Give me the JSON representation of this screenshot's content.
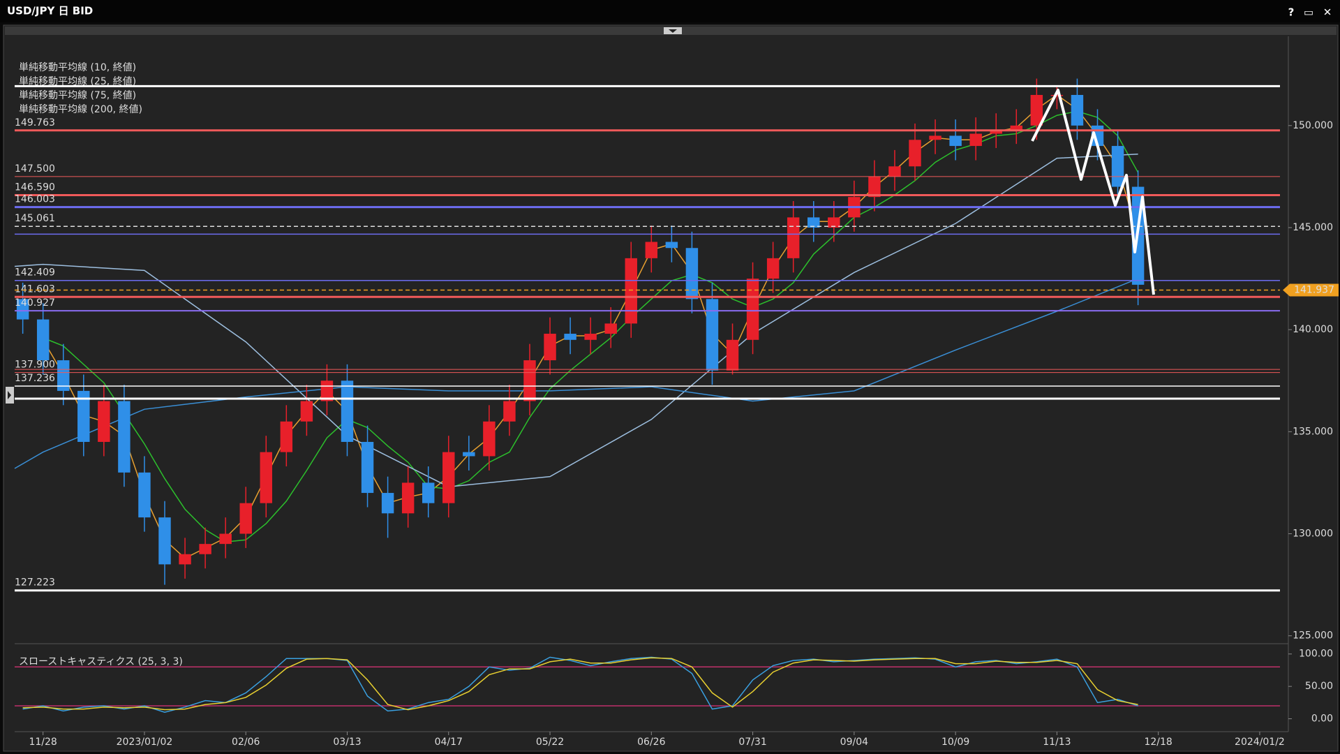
{
  "window": {
    "buttons": [
      "?",
      "▭",
      "✕"
    ]
  },
  "chart_data": [
    {
      "type": "candlestick",
      "title": "USD/JPY 日 BID",
      "xlim": [
        -7,
        305
      ],
      "xticks": [
        {
          "value": 0,
          "label": "11/28"
        },
        {
          "value": 25,
          "label": "2023/01/02"
        },
        {
          "value": 50,
          "label": "02/06"
        },
        {
          "value": 75,
          "label": "03/13"
        },
        {
          "value": 100,
          "label": "04/17"
        },
        {
          "value": 125,
          "label": "05/22"
        },
        {
          "value": 150,
          "label": "06/26"
        },
        {
          "value": 175,
          "label": "07/31"
        },
        {
          "value": 200,
          "label": "09/04"
        },
        {
          "value": 225,
          "label": "10/09"
        },
        {
          "value": 250,
          "label": "11/13"
        },
        {
          "value": 275,
          "label": "12/18"
        },
        {
          "value": 300,
          "label": "2024/01/2"
        }
      ],
      "ylim": [
        124.75,
        154.27
      ],
      "yticks": [
        {
          "value": 125,
          "label": "125.000"
        },
        {
          "value": 130,
          "label": "130.000"
        },
        {
          "value": 135,
          "label": "135.000"
        },
        {
          "value": 140,
          "label": "140.000"
        },
        {
          "value": 145,
          "label": "145.000"
        },
        {
          "value": 150,
          "label": "150.000"
        }
      ],
      "grid": false,
      "up_color": "#e8202a",
      "down_color": "#2f8fe8",
      "candles": {
        "x": [
          -5,
          0,
          5,
          10,
          15,
          20,
          25,
          30,
          35,
          40,
          45,
          50,
          55,
          60,
          65,
          70,
          75,
          80,
          85,
          90,
          95,
          100,
          105,
          110,
          115,
          120,
          125,
          130,
          135,
          140,
          145,
          150,
          155,
          160,
          165,
          170,
          175,
          180,
          185,
          190,
          195,
          200,
          205,
          210,
          215,
          220,
          225,
          230,
          235,
          240,
          245,
          250,
          255,
          260,
          265,
          270
        ],
        "open": [
          141.5,
          140.5,
          138.5,
          137,
          134.5,
          136.5,
          133,
          130.8,
          128.5,
          129,
          129.5,
          130,
          131.5,
          134,
          135.5,
          136.5,
          137.5,
          134.5,
          132,
          131,
          132.5,
          131.5,
          134,
          133.8,
          135.5,
          136.5,
          138.5,
          139.8,
          139.5,
          139.8,
          140.3,
          143.5,
          144.3,
          144,
          141.5,
          138,
          139.5,
          142.5,
          143.5,
          145.5,
          145,
          145.5,
          146.5,
          147.5,
          148,
          149.3,
          149.5,
          149,
          149.6,
          149.8,
          150,
          151.5,
          151.5,
          150,
          149,
          147
        ],
        "high": [
          142.3,
          141.3,
          139.3,
          137.8,
          137.3,
          137.3,
          133.8,
          131.6,
          129.8,
          130.3,
          130.8,
          132.3,
          134.8,
          136.3,
          137.3,
          138.3,
          138.3,
          135.3,
          132.8,
          133.3,
          133.3,
          134.8,
          134.8,
          136.3,
          137.3,
          139.3,
          140.6,
          140.6,
          140.6,
          141.1,
          144.3,
          145.1,
          145.1,
          144.8,
          142.3,
          140.3,
          143.3,
          144.3,
          146.3,
          146.3,
          146.3,
          147.3,
          148.3,
          148.8,
          150.1,
          150.3,
          150.3,
          150.4,
          150.6,
          150.8,
          152.3,
          151.9,
          152.3,
          150.8,
          149.8,
          147.8
        ],
        "low": [
          139.8,
          137.8,
          136.3,
          133.8,
          133.8,
          132.3,
          130.1,
          127.5,
          127.8,
          128.3,
          128.8,
          129.3,
          130.8,
          133.3,
          134.8,
          135.8,
          133.8,
          131.3,
          129.8,
          130.3,
          130.8,
          130.8,
          133.1,
          133.1,
          134.8,
          135.8,
          137.8,
          138.8,
          138.8,
          139.1,
          139.6,
          142.8,
          143.3,
          140.8,
          137.3,
          137.8,
          138.8,
          141.8,
          142.8,
          144.3,
          144.3,
          144.8,
          145.8,
          146.8,
          147.3,
          148.6,
          148.3,
          148.3,
          148.9,
          149.1,
          149.3,
          150.8,
          149.3,
          148.3,
          146.3,
          141.2
        ],
        "close": [
          140.5,
          138.5,
          137,
          134.5,
          136.5,
          133,
          130.8,
          128.5,
          129,
          129.5,
          130,
          131.5,
          134,
          135.5,
          136.5,
          137.5,
          134.5,
          132,
          131,
          132.5,
          131.5,
          134,
          133.8,
          135.5,
          136.5,
          138.5,
          139.8,
          139.5,
          139.8,
          140.3,
          143.5,
          144.3,
          144,
          141.5,
          138,
          139.5,
          142.5,
          143.5,
          145.5,
          145,
          145.5,
          146.5,
          147.5,
          148,
          149.3,
          149.5,
          149,
          149.6,
          149.8,
          150,
          151.5,
          151.5,
          150,
          149,
          147,
          142.2
        ]
      },
      "series": [
        {
          "name": "単純移動平均線 (10, 終値)",
          "color": "#e8a030",
          "x": [
            0,
            5,
            10,
            15,
            20,
            25,
            30,
            35,
            40,
            45,
            50,
            55,
            60,
            65,
            70,
            75,
            80,
            85,
            90,
            95,
            100,
            105,
            110,
            115,
            120,
            125,
            130,
            135,
            140,
            145,
            150,
            155,
            160,
            165,
            170,
            175,
            180,
            185,
            190,
            195,
            200,
            205,
            210,
            215,
            220,
            225,
            230,
            235,
            240,
            245,
            250,
            255,
            260,
            265,
            270
          ],
          "values": [
            139.5,
            137.8,
            135.8,
            135.5,
            134.8,
            131.9,
            129.7,
            128.8,
            129.3,
            129.8,
            130.8,
            132.8,
            134.8,
            136,
            137,
            136,
            133.3,
            131.5,
            131.8,
            132,
            132.8,
            133.9,
            134.7,
            136,
            137.5,
            139.2,
            139.7,
            139.7,
            140,
            141.9,
            143.9,
            144.2,
            142.8,
            139.8,
            138.8,
            141,
            143,
            144.5,
            145.3,
            145.3,
            146,
            147,
            147.8,
            148.7,
            149.4,
            149.3,
            149.3,
            149.7,
            149.9,
            150.8,
            151.5,
            150.8,
            149.5,
            148,
            144.6
          ]
        },
        {
          "name": "単純移動平均線 (25, 終値)",
          "color": "#2cc02c",
          "x": [
            0,
            5,
            10,
            15,
            20,
            25,
            30,
            35,
            40,
            45,
            50,
            55,
            60,
            65,
            70,
            75,
            80,
            85,
            90,
            95,
            100,
            105,
            110,
            115,
            120,
            125,
            130,
            135,
            140,
            145,
            150,
            155,
            160,
            165,
            170,
            175,
            180,
            185,
            190,
            195,
            200,
            205,
            210,
            215,
            220,
            225,
            230,
            235,
            240,
            245,
            250,
            255,
            260,
            265,
            270
          ],
          "values": [
            139.6,
            139.2,
            138.3,
            137.4,
            135.9,
            134.4,
            132.7,
            131.2,
            130.2,
            129.6,
            129.7,
            130.5,
            131.6,
            133.1,
            134.7,
            135.6,
            135.2,
            134.3,
            133.5,
            132.3,
            132.2,
            132.6,
            133.5,
            134,
            135.7,
            137.1,
            138,
            138.8,
            139.6,
            140.6,
            141.5,
            142.4,
            142.7,
            142.3,
            141.5,
            141.1,
            141.5,
            142.3,
            143.7,
            144.6,
            145.5,
            146,
            146.6,
            147.3,
            148.2,
            148.8,
            149.1,
            149.5,
            149.6,
            150,
            150.5,
            150.7,
            150.4,
            149.5,
            147.7
          ]
        },
        {
          "name": "単純移動平均線 (75, 終値)",
          "color": "#9dbfe0",
          "x": [
            -7,
            0,
            25,
            50,
            75,
            100,
            125,
            150,
            175,
            200,
            225,
            250,
            270
          ],
          "values": [
            143.1,
            143.2,
            142.9,
            139.4,
            134.8,
            132.3,
            132.8,
            135.6,
            139.8,
            142.8,
            145.2,
            148.4,
            148.6
          ]
        },
        {
          "name": "単純移動平均線 (200, 終値)",
          "color": "#3a8fd6",
          "x": [
            -7,
            0,
            25,
            50,
            75,
            100,
            125,
            150,
            175,
            200,
            225,
            250,
            270
          ],
          "values": [
            133.2,
            134.0,
            136.1,
            136.7,
            137.2,
            137.0,
            137.0,
            137.2,
            136.5,
            137.0,
            139.0,
            140.9,
            142.5
          ]
        }
      ],
      "levels": [
        {
          "price": 149.763,
          "color": "#f05a5a",
          "width": 3
        },
        {
          "price": {
            "value": 147.5,
            "label": "147.500"
          },
          "color": "#f05a5a",
          "width": 1
        },
        {
          "price": {
            "value": 146.59,
            "label": "146.590"
          },
          "color": "#f05a5a",
          "width": 3
        },
        {
          "price": 146.003,
          "color": "#6c6cf0",
          "width": 3
        },
        {
          "price": 145.061,
          "color": "#dddddd",
          "width": 1.5,
          "dashed": true
        },
        {
          "price": 142.409,
          "color": "#6c6cf0",
          "width": 1.5
        },
        {
          "price": 141.603,
          "color": "#f05a5a",
          "width": 3
        },
        {
          "price": 140.927,
          "color": "#8a6cf0",
          "width": 2
        },
        {
          "price": {
            "value": 137.9,
            "label": "137.900"
          },
          "color": "#f05a5a",
          "width": 1
        },
        {
          "price": 137.236,
          "color": "#ffffff",
          "width": 1.5
        },
        {
          "price": 127.223,
          "color": "#ffffff",
          "width": 3
        }
      ],
      "unlabeled_levels": [
        {
          "price": 151.93,
          "color": "#ffffff",
          "width": 3
        },
        {
          "price": 144.68,
          "color": "#6c6cf0",
          "width": 1.5
        },
        {
          "price": 138.05,
          "color": "#f05a5a",
          "width": 1
        },
        {
          "price": 136.62,
          "color": "#ffffff",
          "width": 3
        }
      ],
      "current_price": 141.937,
      "current_color": "#f0a020"
    },
    {
      "type": "line",
      "title": "スローストキャスティクス (25, 3, 3)",
      "title_color": "#3aa0e0",
      "xlim": [
        -7,
        305
      ],
      "ylim": [
        -14.5,
        110.5
      ],
      "yticks": [
        {
          "value": 0,
          "label": "0.00"
        },
        {
          "value": 50,
          "label": "50.00"
        },
        {
          "value": 100,
          "label": "100.00"
        }
      ],
      "levels": [
        80,
        20
      ],
      "level_color": "#c0306a",
      "series": [
        {
          "color": "#3aa0e0",
          "x": [
            -5,
            0,
            5,
            10,
            15,
            20,
            25,
            30,
            35,
            40,
            45,
            50,
            55,
            60,
            65,
            70,
            75,
            80,
            85,
            90,
            95,
            100,
            105,
            110,
            115,
            120,
            125,
            130,
            135,
            140,
            145,
            150,
            155,
            160,
            165,
            170,
            175,
            180,
            185,
            190,
            195,
            200,
            205,
            210,
            215,
            220,
            225,
            230,
            235,
            240,
            245,
            250,
            255,
            260,
            265,
            270
          ],
          "values": [
            15,
            20,
            12,
            18,
            20,
            15,
            20,
            10,
            18,
            28,
            25,
            40,
            65,
            93,
            93,
            93,
            90,
            35,
            12,
            15,
            25,
            30,
            50,
            80,
            75,
            78,
            95,
            90,
            82,
            88,
            93,
            95,
            92,
            70,
            15,
            20,
            60,
            82,
            90,
            92,
            88,
            90,
            92,
            93,
            94,
            92,
            80,
            88,
            90,
            85,
            88,
            92,
            80,
            25,
            30,
            20
          ]
        },
        {
          "color": "#e8d030",
          "x": [
            -5,
            0,
            5,
            10,
            15,
            20,
            25,
            30,
            35,
            40,
            45,
            50,
            55,
            60,
            65,
            70,
            75,
            80,
            85,
            90,
            95,
            100,
            105,
            110,
            115,
            120,
            125,
            130,
            135,
            140,
            145,
            150,
            155,
            160,
            165,
            170,
            175,
            180,
            185,
            190,
            195,
            200,
            205,
            210,
            215,
            220,
            225,
            230,
            235,
            240,
            245,
            250,
            255,
            260,
            265,
            270
          ],
          "values": [
            17,
            18,
            15,
            15,
            18,
            17,
            18,
            14,
            15,
            22,
            25,
            33,
            52,
            78,
            92,
            93,
            91,
            60,
            22,
            14,
            20,
            28,
            42,
            68,
            77,
            77,
            88,
            92,
            86,
            86,
            91,
            94,
            93,
            80,
            40,
            18,
            42,
            72,
            86,
            91,
            90,
            89,
            91,
            92,
            93,
            93,
            85,
            85,
            89,
            87,
            87,
            90,
            85,
            45,
            28,
            22
          ]
        }
      ]
    }
  ]
}
